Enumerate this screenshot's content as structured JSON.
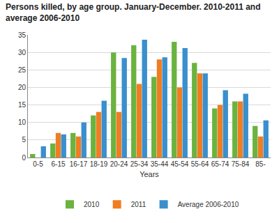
{
  "chart_data": {
    "type": "bar",
    "title": [
      "Persons killed, by age group. January-December. 2010-2011 and",
      "average 2006-2010"
    ],
    "x_label": "Years",
    "categories": [
      "0-5",
      "6-15",
      "16-17",
      "18-19",
      "20-24",
      "25-34",
      "35-44",
      "45-54",
      "55-64",
      "65-74",
      "75-84",
      "85-"
    ],
    "series": [
      {
        "name": "2010",
        "color": "#6bb33f",
        "values": [
          1,
          4,
          7,
          12,
          30,
          32,
          23,
          33,
          27,
          14,
          16,
          9
        ]
      },
      {
        "name": "2011",
        "color": "#f07d21",
        "values": [
          0,
          7,
          6,
          13,
          13,
          21,
          28,
          20,
          24,
          15,
          16,
          6
        ]
      },
      {
        "name": "Average 2006-2010",
        "color": "#3a8fcc",
        "values": [
          3.2,
          6.6,
          10,
          16.2,
          28.4,
          33.6,
          28.6,
          31.2,
          24,
          19.2,
          18.2,
          10.6
        ]
      }
    ],
    "ylim": [
      0,
      35
    ],
    "yticks": [
      0,
      5,
      10,
      15,
      20,
      25,
      30,
      35
    ],
    "grid": true,
    "legend": "bottom"
  }
}
